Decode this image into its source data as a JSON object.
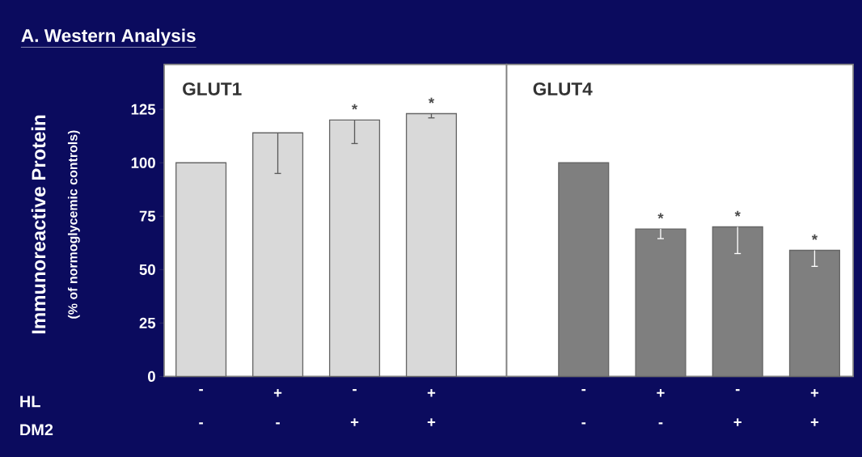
{
  "chart_data": [
    {
      "type": "bar",
      "title": "A. Western Analysis",
      "subtitle": "GLUT1",
      "ylabel": "Immunoreactive Protein",
      "categories": [
        "-",
        "+",
        "-",
        "+"
      ],
      "values": [
        100,
        114,
        120,
        123
      ],
      "color": "#d9d9d9",
      "errors": [
        null,
        [
          95,
          114
        ],
        [
          109,
          120
        ],
        [
          121,
          123
        ]
      ],
      "value_labels": [
        null,
        null,
        "*",
        "*"
      ],
      "ylim": [
        0,
        146
      ],
      "yticks": [
        0,
        25,
        50,
        75,
        100,
        125
      ],
      "annotations": [
        "(% of normoglycemic controls)",
        "HL",
        "DM2",
        "-",
        "-",
        "+",
        "+"
      ]
    },
    {
      "type": "bar",
      "subtitle": "GLUT4",
      "categories": [
        "-",
        "+",
        "-",
        "+"
      ],
      "values": [
        100,
        69,
        70,
        59
      ],
      "color": "#7f7f7f",
      "errors": [
        null,
        [
          64.5,
          69
        ],
        [
          57.5,
          70
        ],
        [
          51.5,
          59
        ]
      ],
      "value_labels": [
        null,
        "*",
        "*",
        "*"
      ],
      "ylim": [
        0,
        146
      ],
      "tick_labels": "x",
      "annotations": [
        "-",
        "-",
        "+",
        "+"
      ]
    }
  ]
}
